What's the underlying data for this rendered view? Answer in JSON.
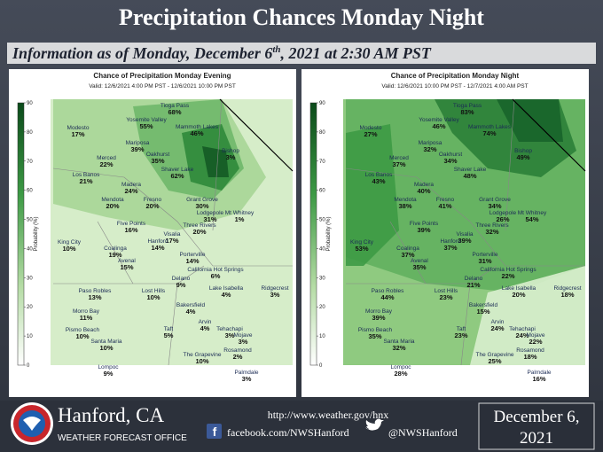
{
  "header": {
    "title": "Precipitation Chances Monday Night",
    "subtitle": {
      "before": "Information as of Monday, December 6",
      "sup": "th",
      "after": ", 2021 at 2:30 AM PST"
    }
  },
  "maps": [
    {
      "title": "Chance of Precipitation Monday Evening",
      "valid": "Valid: 12/6/2021 4:00 PM PST - 12/6/2021 10:00 PM PST",
      "colorbar_label": "Probability (%)",
      "colorbar_ticks": [
        "90",
        "80",
        "70",
        "60",
        "50",
        "40",
        "30",
        "20",
        "10",
        "0"
      ],
      "places": [
        {
          "name": "Tioga Pass",
          "value": "68%"
        },
        {
          "name": "Yosemite Valley",
          "value": "55%"
        },
        {
          "name": "Mammoth Lakes",
          "value": "46%"
        },
        {
          "name": "Modesto",
          "value": "17%"
        },
        {
          "name": "Mariposa",
          "value": "39%"
        },
        {
          "name": "Bishop",
          "value": "3%"
        },
        {
          "name": "Merced",
          "value": "22%"
        },
        {
          "name": "Oakhurst",
          "value": "35%"
        },
        {
          "name": "Shaver Lake",
          "value": "62%"
        },
        {
          "name": "Los Banos",
          "value": "21%"
        },
        {
          "name": "Madera",
          "value": "24%"
        },
        {
          "name": "Fresno",
          "value": "20%"
        },
        {
          "name": "Mendota",
          "value": "20%"
        },
        {
          "name": "Grant Grove",
          "value": "30%"
        },
        {
          "name": "Lodgepole",
          "value": "31%"
        },
        {
          "name": "Mt Whitney",
          "value": "1%"
        },
        {
          "name": "Three Rivers",
          "value": "20%"
        },
        {
          "name": "Five Points",
          "value": "16%"
        },
        {
          "name": "Visalia",
          "value": "17%"
        },
        {
          "name": "King City",
          "value": "10%"
        },
        {
          "name": "Hanford",
          "value": "14%"
        },
        {
          "name": "Coalinga",
          "value": "19%"
        },
        {
          "name": "Avenal",
          "value": "15%"
        },
        {
          "name": "Porterville",
          "value": "14%"
        },
        {
          "name": "California Hot Springs",
          "value": "6%"
        },
        {
          "name": "Delano",
          "value": "9%"
        },
        {
          "name": "Paso Robles",
          "value": "13%"
        },
        {
          "name": "Lost Hills",
          "value": "10%"
        },
        {
          "name": "Lake Isabella",
          "value": "4%"
        },
        {
          "name": "Ridgecrest",
          "value": "3%"
        },
        {
          "name": "Bakersfield",
          "value": "4%"
        },
        {
          "name": "Morro Bay",
          "value": "11%"
        },
        {
          "name": "Arvin",
          "value": "4%"
        },
        {
          "name": "Taft",
          "value": "5%"
        },
        {
          "name": "Tehachapi",
          "value": "3%"
        },
        {
          "name": "Mojave",
          "value": "3%"
        },
        {
          "name": "Pismo Beach",
          "value": "10%"
        },
        {
          "name": "Santa Maria",
          "value": "10%"
        },
        {
          "name": "Rosamond",
          "value": "2%"
        },
        {
          "name": "The Grapevine",
          "value": "10%"
        },
        {
          "name": "Lompoc",
          "value": "9%"
        },
        {
          "name": "Palmdale",
          "value": "3%"
        }
      ]
    },
    {
      "title": "Chance of Precipitation Monday Night",
      "valid": "Valid: 12/6/2021 10:00 PM PST - 12/7/2021 4:00 AM PST",
      "colorbar_label": "Probability (%)",
      "colorbar_ticks": [
        "90",
        "80",
        "70",
        "60",
        "50",
        "40",
        "30",
        "20",
        "10",
        "0"
      ],
      "places": [
        {
          "name": "Tioga Pass",
          "value": "83%"
        },
        {
          "name": "Yosemite Valley",
          "value": "46%"
        },
        {
          "name": "Mammoth Lakes",
          "value": "74%"
        },
        {
          "name": "Modesto",
          "value": "27%"
        },
        {
          "name": "Mariposa",
          "value": "32%"
        },
        {
          "name": "Bishop",
          "value": "49%"
        },
        {
          "name": "Merced",
          "value": "37%"
        },
        {
          "name": "Oakhurst",
          "value": "34%"
        },
        {
          "name": "Shaver Lake",
          "value": "48%"
        },
        {
          "name": "Los Banos",
          "value": "43%"
        },
        {
          "name": "Madera",
          "value": "40%"
        },
        {
          "name": "Fresno",
          "value": "41%"
        },
        {
          "name": "Mendota",
          "value": "38%"
        },
        {
          "name": "Grant Grove",
          "value": "34%"
        },
        {
          "name": "Lodgepole",
          "value": "26%"
        },
        {
          "name": "Mt Whitney",
          "value": "54%"
        },
        {
          "name": "Three Rivers",
          "value": "32%"
        },
        {
          "name": "Five Points",
          "value": "39%"
        },
        {
          "name": "Visalia",
          "value": "39%"
        },
        {
          "name": "King City",
          "value": "53%"
        },
        {
          "name": "Hanford",
          "value": "37%"
        },
        {
          "name": "Coalinga",
          "value": "37%"
        },
        {
          "name": "Avenal",
          "value": "35%"
        },
        {
          "name": "Porterville",
          "value": "31%"
        },
        {
          "name": "California Hot Springs",
          "value": "22%"
        },
        {
          "name": "Delano",
          "value": "21%"
        },
        {
          "name": "Paso Robles",
          "value": "44%"
        },
        {
          "name": "Lost Hills",
          "value": "23%"
        },
        {
          "name": "Lake Isabella",
          "value": "20%"
        },
        {
          "name": "Ridgecrest",
          "value": "18%"
        },
        {
          "name": "Bakersfield",
          "value": "15%"
        },
        {
          "name": "Morro Bay",
          "value": "39%"
        },
        {
          "name": "Arvin",
          "value": "24%"
        },
        {
          "name": "Taft",
          "value": "23%"
        },
        {
          "name": "Tehachapi",
          "value": "24%"
        },
        {
          "name": "Mojave",
          "value": "22%"
        },
        {
          "name": "Pismo Beach",
          "value": "35%"
        },
        {
          "name": "Santa Maria",
          "value": "32%"
        },
        {
          "name": "Rosamond",
          "value": "18%"
        },
        {
          "name": "The Grapevine",
          "value": "25%"
        },
        {
          "name": "Lompoc",
          "value": "28%"
        },
        {
          "name": "Palmdale",
          "value": "16%"
        }
      ]
    }
  ],
  "footer": {
    "office": "Hanford, CA",
    "office_sub": "WEATHER FORECAST OFFICE",
    "url": "http://www.weather.gov/hnx",
    "facebook": "facebook.com/NWSHanford",
    "twitter": "@NWSHanford",
    "date_line1": "December 6,",
    "date_line2": "2021"
  }
}
